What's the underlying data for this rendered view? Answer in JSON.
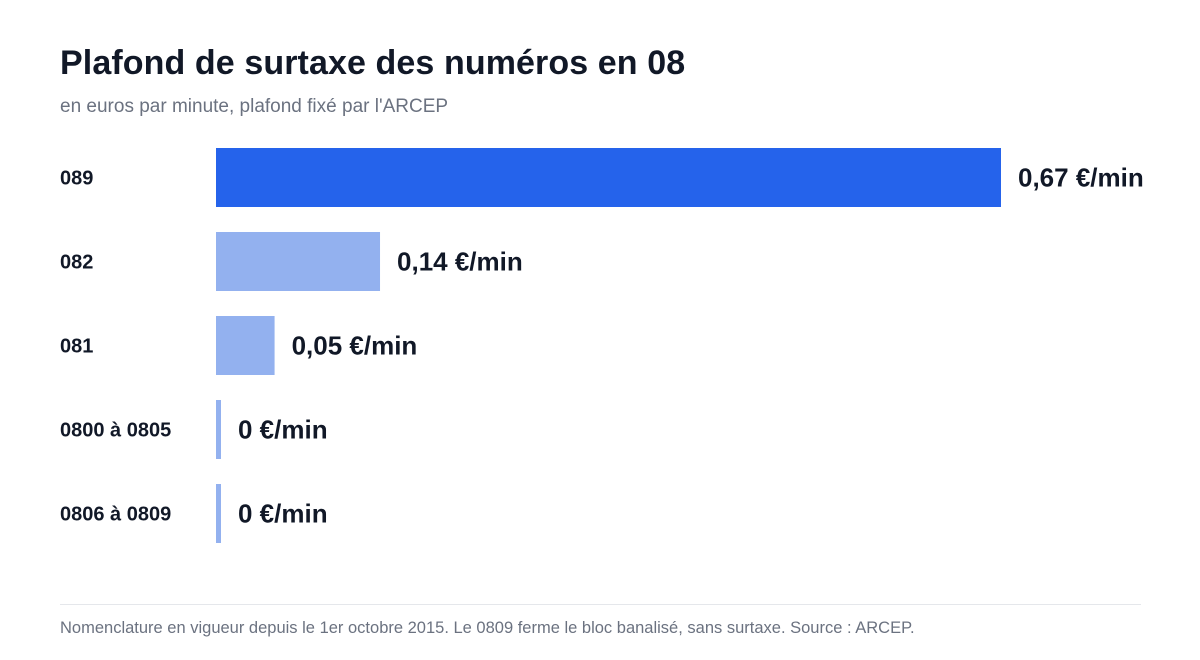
{
  "chart_data": {
    "type": "bar",
    "orientation": "horizontal",
    "title": "Plafond de surtaxe des numéros en 08",
    "subtitle": "en euros par minute, plafond fixé par l'ARCEP",
    "categories": [
      "089",
      "082",
      "081",
      "0800 à 0805",
      "0806 à 0809"
    ],
    "values": [
      0.67,
      0.14,
      0.05,
      0,
      0
    ],
    "value_labels": [
      "0,67 €/min",
      "0,14 €/min",
      "0,05 €/min",
      "0 €/min",
      "0 €/min"
    ],
    "highlight_index": 0,
    "colors": {
      "highlight": "#2563eb",
      "default": "#93b1ef",
      "label": "#111827"
    },
    "xlim": [
      0,
      0.67
    ],
    "grid": false,
    "legend": "none"
  },
  "footnote": "Nomenclature en vigueur depuis le 1er octobre 2015. Le 0809 ferme le bloc banalisé, sans surtaxe. Source : ARCEP."
}
